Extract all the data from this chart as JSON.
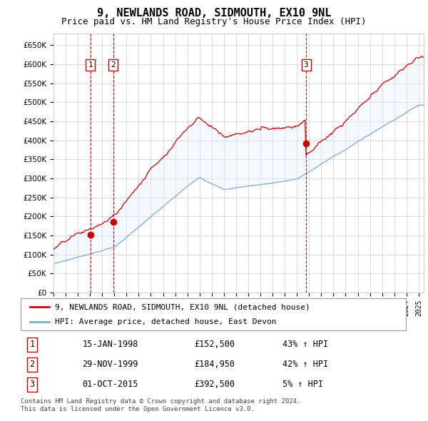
{
  "title": "9, NEWLANDS ROAD, SIDMOUTH, EX10 9NL",
  "subtitle": "Price paid vs. HM Land Registry's House Price Index (HPI)",
  "ylim": [
    0,
    680000
  ],
  "yticks": [
    0,
    50000,
    100000,
    150000,
    200000,
    250000,
    300000,
    350000,
    400000,
    450000,
    500000,
    550000,
    600000,
    650000
  ],
  "xlim_start": 1995.0,
  "xlim_end": 2025.42,
  "sale_dates": [
    1998.04,
    1999.91,
    2015.75
  ],
  "sale_prices": [
    152500,
    184950,
    392500
  ],
  "sale_labels": [
    "1",
    "2",
    "3"
  ],
  "sale_date_labels": [
    "15-JAN-1998",
    "29-NOV-1999",
    "01-OCT-2015"
  ],
  "sale_price_labels": [
    "£152,500",
    "£184,950",
    "£392,500"
  ],
  "sale_hpi_labels": [
    "43% ↑ HPI",
    "42% ↑ HPI",
    "5% ↑ HPI"
  ],
  "line_color_red": "#cc0000",
  "line_color_blue": "#7aadd4",
  "vline_color": "#cc0000",
  "fill_color_blue": "#ddeeff",
  "legend_label_red": "9, NEWLANDS ROAD, SIDMOUTH, EX10 9NL (detached house)",
  "legend_label_blue": "HPI: Average price, detached house, East Devon",
  "footer1": "Contains HM Land Registry data © Crown copyright and database right 2024.",
  "footer2": "This data is licensed under the Open Government Licence v3.0.",
  "background_color": "#ffffff",
  "grid_color": "#cccccc",
  "title_fontsize": 11,
  "subtitle_fontsize": 9,
  "tick_fontsize": 7.5,
  "legend_fontsize": 8,
  "footer_fontsize": 6.5
}
